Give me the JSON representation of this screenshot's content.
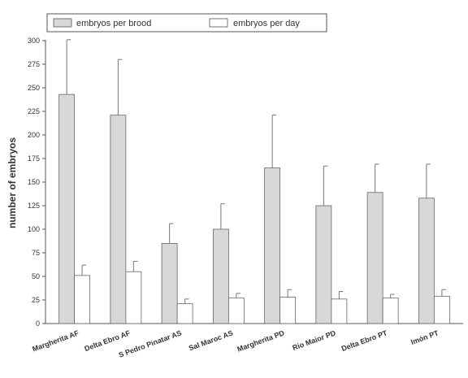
{
  "chart_data": {
    "type": "bar",
    "ylabel": "number of embryos",
    "xlabel": "",
    "ylim": [
      0,
      300
    ],
    "yticks": [
      0,
      25,
      50,
      75,
      100,
      125,
      150,
      175,
      200,
      225,
      250,
      275,
      300
    ],
    "grid": false,
    "legend_position": "top",
    "categories": [
      "Margherita AF",
      "Delta Ebro AF",
      "S Pedro Pinatar AS",
      "Sal Maroc AS",
      "Margherita PD",
      "Rio Maior PD",
      "Delta Ebro PT",
      "Imón PT"
    ],
    "series": [
      {
        "name": "embryos per brood",
        "color": "#d8d8d8",
        "values": [
          243,
          221,
          85,
          100,
          165,
          125,
          139,
          133
        ],
        "errors": [
          58,
          59,
          21,
          27,
          56,
          42,
          30,
          36
        ]
      },
      {
        "name": "embryos per day",
        "color": "#ffffff",
        "values": [
          51,
          55,
          21,
          27,
          28,
          26,
          27,
          29
        ],
        "errors": [
          11,
          11,
          5,
          5,
          8,
          8,
          4,
          7
        ]
      }
    ]
  }
}
